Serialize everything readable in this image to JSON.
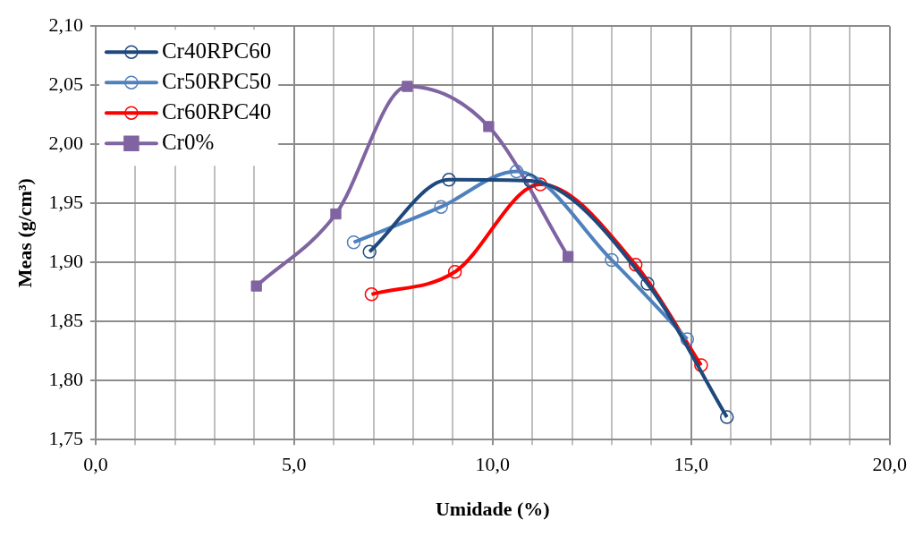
{
  "chart_data": {
    "type": "line",
    "xlabel": "Umidade (%)",
    "ylabel": "Meas (g/cm³)",
    "xlim": [
      0,
      20
    ],
    "xticks": [
      {
        "value": 0,
        "label": "0,0"
      },
      {
        "value": 1,
        "label": null
      },
      {
        "value": 2,
        "label": null
      },
      {
        "value": 3,
        "label": null
      },
      {
        "value": 4,
        "label": null
      },
      {
        "value": 5,
        "label": "5,0"
      },
      {
        "value": 6,
        "label": null
      },
      {
        "value": 7,
        "label": null
      },
      {
        "value": 8,
        "label": null
      },
      {
        "value": 9,
        "label": null
      },
      {
        "value": 10,
        "label": "10,0"
      },
      {
        "value": 11,
        "label": null
      },
      {
        "value": 12,
        "label": null
      },
      {
        "value": 13,
        "label": null
      },
      {
        "value": 14,
        "label": null
      },
      {
        "value": 15,
        "label": "15,0"
      },
      {
        "value": 16,
        "label": null
      },
      {
        "value": 17,
        "label": null
      },
      {
        "value": 18,
        "label": null
      },
      {
        "value": 19,
        "label": null
      },
      {
        "value": 20,
        "label": "20,0"
      }
    ],
    "ylim": [
      1.75,
      2.1
    ],
    "yticks": [
      {
        "value": 1.75,
        "label": "1,75"
      },
      {
        "value": 1.8,
        "label": "1,80"
      },
      {
        "value": 1.85,
        "label": "1,85"
      },
      {
        "value": 1.9,
        "label": "1,90"
      },
      {
        "value": 1.95,
        "label": "1,95"
      },
      {
        "value": 2.0,
        "label": "2,00"
      },
      {
        "value": 2.05,
        "label": "2,05"
      },
      {
        "value": 2.1,
        "label": "2,10"
      }
    ],
    "grid": true,
    "legend": "top left",
    "series": [
      {
        "name": "Cr40RPC60",
        "color": "#1f497d",
        "marker": "circle",
        "x": [
          6.9,
          8.9,
          10.95,
          13.9,
          15.9
        ],
        "values": [
          1.909,
          1.97,
          1.969,
          1.882,
          1.769
        ]
      },
      {
        "name": "Cr50RPC50",
        "color": "#4f81bd",
        "marker": "circle",
        "x": [
          6.5,
          8.7,
          10.6,
          13.0,
          14.9
        ],
        "values": [
          1.917,
          1.947,
          1.977,
          1.902,
          1.835
        ]
      },
      {
        "name": "Cr60RPC40",
        "color": "#ff0000",
        "marker": "circle",
        "x": [
          6.95,
          9.05,
          11.2,
          13.6,
          15.25
        ],
        "values": [
          1.873,
          1.892,
          1.966,
          1.898,
          1.813
        ]
      },
      {
        "name": "Cr0%",
        "color": "#8064a2",
        "marker": "square",
        "x": [
          4.05,
          6.05,
          7.85,
          9.9,
          11.9
        ],
        "values": [
          1.88,
          1.941,
          2.049,
          2.015,
          1.905
        ]
      }
    ]
  }
}
